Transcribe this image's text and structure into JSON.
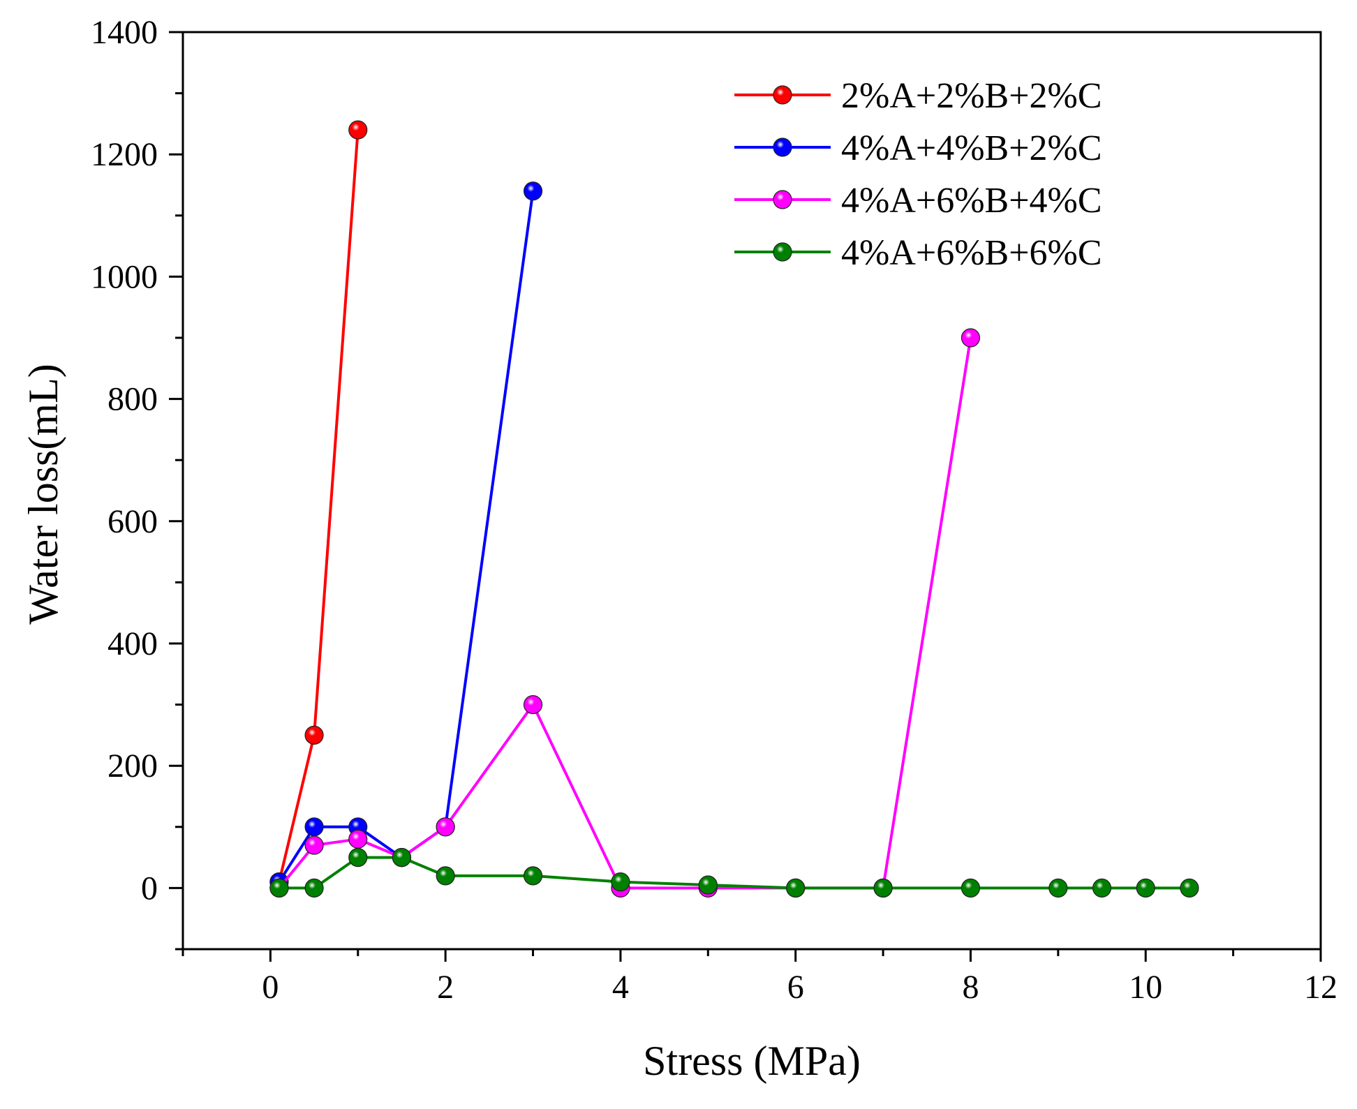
{
  "chart_data": {
    "type": "line",
    "title": "",
    "xlabel": "Stress (MPa)",
    "ylabel": "Water loss(mL)",
    "xlim": [
      -1,
      12
    ],
    "ylim": [
      -100,
      1400
    ],
    "x_ticks": [
      0,
      2,
      4,
      6,
      8,
      10,
      12
    ],
    "y_ticks": [
      0,
      200,
      400,
      600,
      800,
      1000,
      1200,
      1400
    ],
    "x_tick_labels": [
      "0",
      "2",
      "4",
      "6",
      "8",
      "10",
      "12"
    ],
    "y_tick_labels": [
      "0",
      "200",
      "400",
      "600",
      "800",
      "1000",
      "1200",
      "1400"
    ],
    "grid": false,
    "legend_position": "top-right",
    "series": [
      {
        "name": "2%A+2%B+2%C",
        "color": "#ff0000",
        "x": [
          0.1,
          0.5,
          1.0
        ],
        "values": [
          10,
          250,
          1240
        ]
      },
      {
        "name": "4%A+4%B+2%C",
        "color": "#0000ff",
        "x": [
          0.1,
          0.5,
          1.0,
          1.5,
          2.0,
          3.0
        ],
        "values": [
          10,
          100,
          100,
          50,
          100,
          1140
        ]
      },
      {
        "name": "4%A+6%B+4%C",
        "color": "#ff00ff",
        "x": [
          0.1,
          0.5,
          1.0,
          1.5,
          2.0,
          3.0,
          4.0,
          5.0,
          6.0,
          7.0,
          8.0
        ],
        "values": [
          0,
          70,
          80,
          50,
          100,
          300,
          0,
          0,
          0,
          0,
          900
        ]
      },
      {
        "name": "4%A+6%B+6%C",
        "color": "#008000",
        "x": [
          0.1,
          0.5,
          1.0,
          1.5,
          2.0,
          3.0,
          4.0,
          5.0,
          6.0,
          7.0,
          8.0,
          9.0,
          9.5,
          10.0,
          10.5
        ],
        "values": [
          0,
          0,
          50,
          50,
          20,
          20,
          10,
          5,
          0,
          0,
          0,
          0,
          0,
          0,
          0
        ]
      }
    ]
  }
}
